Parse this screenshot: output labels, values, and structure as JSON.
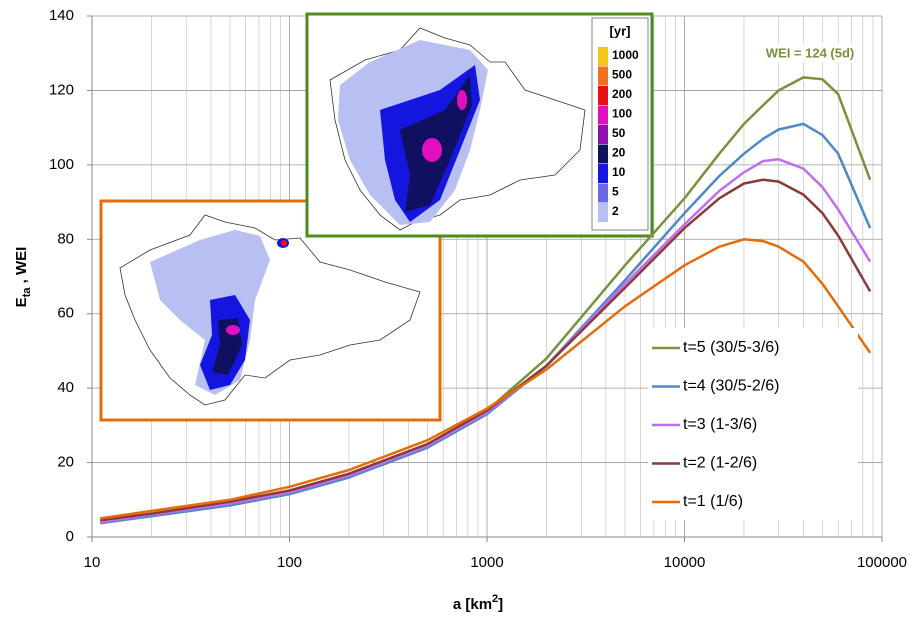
{
  "chart_data": {
    "type": "line",
    "x_label": [
      "a [km",
      "2",
      "]"
    ],
    "y_label": [
      "E",
      "ta",
      " , WEI"
    ],
    "xlog": true,
    "grid": true,
    "minor_grid": true,
    "xlim": [
      10,
      100000
    ],
    "xticks": [
      10,
      100,
      1000,
      10000,
      100000
    ],
    "ylim": [
      0,
      140
    ],
    "yticks": [
      0,
      20,
      40,
      60,
      80,
      100,
      120,
      140
    ],
    "legend": "lower right",
    "annotation": {
      "text": "WEI = 124 (5d)",
      "color": "#77933c"
    },
    "x": [
      11,
      20,
      50,
      100,
      200,
      500,
      1000,
      2000,
      5000,
      10000,
      15000,
      20000,
      25000,
      30000,
      40000,
      50000,
      60000,
      87000
    ],
    "series": [
      {
        "name": "t=5 (30/5-3/6)",
        "color": "#77933c",
        "values": [
          4,
          6,
          9,
          12,
          16.5,
          24.5,
          34,
          48,
          73,
          91,
          103,
          111,
          116,
          120,
          123.5,
          123,
          119,
          96
        ]
      },
      {
        "name": "t=4 (30/5-2/6)",
        "color": "#4f88c6",
        "values": [
          3.7,
          5.6,
          8.5,
          11.5,
          16,
          24,
          33,
          46,
          69,
          87,
          97,
          103,
          107,
          109.5,
          111,
          108,
          103,
          83
        ]
      },
      {
        "name": "t=3 (1-3/6)",
        "color": "#c06ef0",
        "values": [
          4,
          6,
          9,
          12,
          16.5,
          24.5,
          33.5,
          46,
          68,
          84,
          93,
          98,
          101,
          101.5,
          99,
          94,
          88,
          74
        ]
      },
      {
        "name": "t=2 (1-2/6)",
        "color": "#8b3a3a",
        "values": [
          4.5,
          6.3,
          9.5,
          12.5,
          17,
          25,
          34,
          46,
          67,
          83,
          91,
          95,
          96,
          95.5,
          92,
          87,
          81,
          66
        ]
      },
      {
        "name": "t=1 (1/6)",
        "color": "#e46c0a",
        "values": [
          5,
          7,
          10,
          13.5,
          18,
          26,
          34.5,
          45,
          62,
          73,
          78,
          80,
          79.5,
          78,
          74,
          68,
          62,
          49.5
        ]
      }
    ],
    "colorbar": {
      "title": "[yr]",
      "labels": [
        1000,
        500,
        200,
        100,
        50,
        20,
        10,
        5,
        2
      ],
      "colors": [
        "#f5c518",
        "#f07020",
        "#e81010",
        "#e010c0",
        "#9010b0",
        "#101060",
        "#1515e0",
        "#6a6ae6",
        "#b8bff2"
      ]
    }
  }
}
